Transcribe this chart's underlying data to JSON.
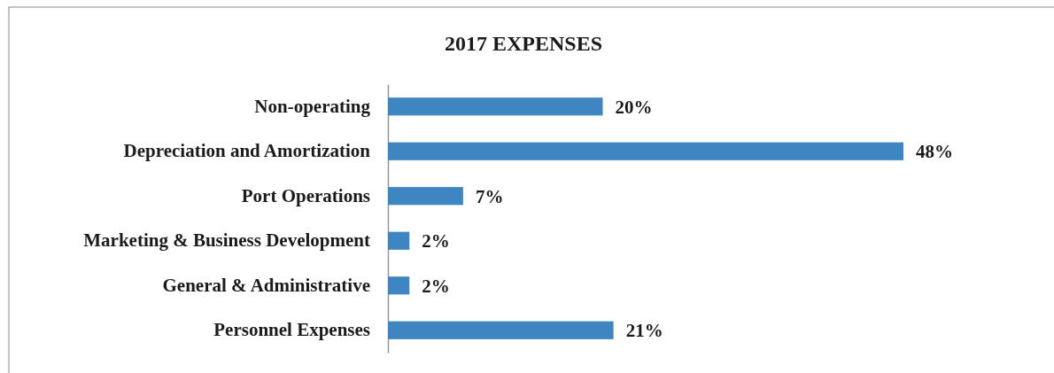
{
  "chart_data": {
    "type": "bar",
    "orientation": "horizontal",
    "title": "2017 EXPENSES",
    "categories": [
      "Non-operating",
      "Depreciation and Amortization",
      "Port Operations",
      "Marketing & Business Development",
      "General & Administrative",
      "Personnel Expenses"
    ],
    "values": [
      20,
      48,
      7,
      2,
      2,
      21
    ],
    "color": "#3d86c1",
    "value_labels": [
      "20%",
      "48%",
      "7%",
      "2%",
      "2%",
      "21%"
    ]
  }
}
